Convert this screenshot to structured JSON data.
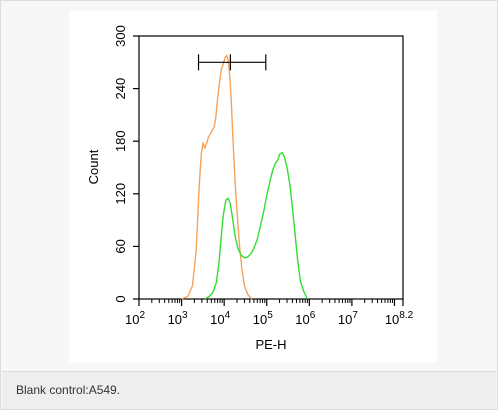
{
  "chart_data": {
    "type": "area",
    "xlabel": "PE-H",
    "ylabel": "Count",
    "x_scale": "log",
    "xlim": [
      100,
      158489319
    ],
    "ylim": [
      0,
      300
    ],
    "x_ticks": [
      {
        "base": "10",
        "exp": "2",
        "value": 100
      },
      {
        "base": "10",
        "exp": "3",
        "value": 1000
      },
      {
        "base": "10",
        "exp": "4",
        "value": 10000
      },
      {
        "base": "10",
        "exp": "5",
        "value": 100000
      },
      {
        "base": "10",
        "exp": "6",
        "value": 1000000
      },
      {
        "base": "10",
        "exp": "7",
        "value": 10000000
      },
      {
        "base": "10",
        "exp": "8.2",
        "value": 158489319
      }
    ],
    "y_ticks": [
      "0",
      "60",
      "120",
      "180",
      "240",
      "300"
    ],
    "y_tick_values": [
      0,
      60,
      120,
      180,
      240,
      300
    ],
    "gate": {
      "x_start": 2500,
      "x_mid": 14000,
      "x_end": 95000,
      "y": 270
    },
    "series": [
      {
        "color": "#f5a25d",
        "points": [
          [
            1000,
            0
          ],
          [
            1400,
            3
          ],
          [
            1800,
            15
          ],
          [
            2200,
            55
          ],
          [
            2600,
            130
          ],
          [
            2900,
            165
          ],
          [
            3200,
            178
          ],
          [
            3500,
            172
          ],
          [
            3900,
            178
          ],
          [
            4300,
            185
          ],
          [
            4700,
            188
          ],
          [
            5200,
            192
          ],
          [
            5800,
            196
          ],
          [
            6400,
            208
          ],
          [
            7000,
            228
          ],
          [
            7800,
            248
          ],
          [
            8600,
            262
          ],
          [
            9500,
            268
          ],
          [
            10500,
            275
          ],
          [
            11500,
            278
          ],
          [
            12500,
            272
          ],
          [
            13500,
            255
          ],
          [
            14500,
            232
          ],
          [
            16000,
            185
          ],
          [
            18000,
            135
          ],
          [
            20000,
            100
          ],
          [
            23000,
            60
          ],
          [
            26000,
            35
          ],
          [
            30000,
            15
          ],
          [
            36000,
            5
          ],
          [
            45000,
            0
          ]
        ]
      },
      {
        "color": "#33dd33",
        "points": [
          [
            3500,
            0
          ],
          [
            4500,
            3
          ],
          [
            5500,
            8
          ],
          [
            6500,
            18
          ],
          [
            7500,
            40
          ],
          [
            8500,
            70
          ],
          [
            9500,
            95
          ],
          [
            11000,
            113
          ],
          [
            12500,
            115
          ],
          [
            14000,
            108
          ],
          [
            16000,
            90
          ],
          [
            18000,
            72
          ],
          [
            21000,
            58
          ],
          [
            25000,
            50
          ],
          [
            30000,
            47
          ],
          [
            36000,
            48
          ],
          [
            43000,
            52
          ],
          [
            50000,
            58
          ],
          [
            60000,
            68
          ],
          [
            70000,
            82
          ],
          [
            85000,
            100
          ],
          [
            100000,
            118
          ],
          [
            120000,
            135
          ],
          [
            140000,
            148
          ],
          [
            160000,
            155
          ],
          [
            180000,
            158
          ],
          [
            200000,
            165
          ],
          [
            230000,
            167
          ],
          [
            260000,
            162
          ],
          [
            300000,
            150
          ],
          [
            350000,
            130
          ],
          [
            400000,
            105
          ],
          [
            460000,
            75
          ],
          [
            530000,
            45
          ],
          [
            620000,
            20
          ],
          [
            750000,
            8
          ],
          [
            900000,
            0
          ]
        ]
      }
    ]
  },
  "caption": "Blank control:A549."
}
